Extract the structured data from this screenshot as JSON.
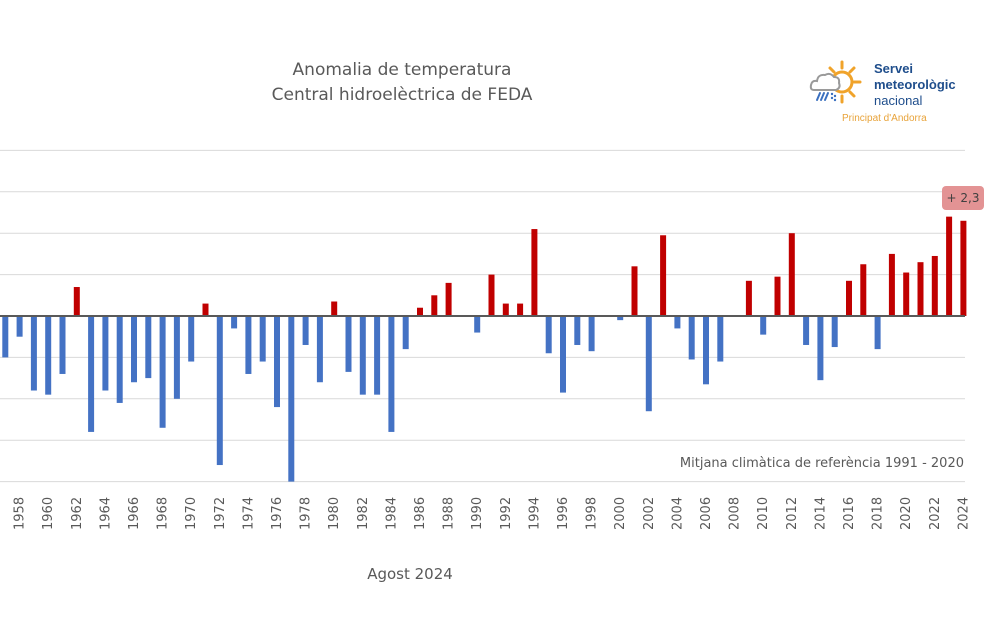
{
  "chart_data": {
    "type": "bar",
    "title": "Anomalia de temperatura",
    "subtitle": "Central hidroelèctrica de FEDA",
    "xlabel": "Agost 2024",
    "ylabel": "",
    "ylim": [
      -4,
      4
    ],
    "grid": true,
    "gridline_step": 1,
    "legend": "none",
    "positive_color": "#C00000",
    "negative_color": "#4472C4",
    "categories": [
      1957,
      1958,
      1959,
      1960,
      1961,
      1962,
      1963,
      1964,
      1965,
      1966,
      1967,
      1968,
      1969,
      1970,
      1971,
      1972,
      1973,
      1974,
      1975,
      1976,
      1977,
      1978,
      1979,
      1980,
      1981,
      1982,
      1983,
      1984,
      1985,
      1986,
      1987,
      1988,
      1989,
      1990,
      1991,
      1992,
      1993,
      1994,
      1995,
      1996,
      1997,
      1998,
      1999,
      2000,
      2001,
      2002,
      2003,
      2004,
      2005,
      2006,
      2007,
      2008,
      2009,
      2010,
      2011,
      2012,
      2013,
      2014,
      2015,
      2016,
      2017,
      2018,
      2019,
      2020,
      2021,
      2022,
      2023,
      2024
    ],
    "tick_labels": [
      "1958",
      "1960",
      "1962",
      "1964",
      "1966",
      "1968",
      "1970",
      "1972",
      "1974",
      "1976",
      "1978",
      "1980",
      "1982",
      "1984",
      "1986",
      "1988",
      "1990",
      "1992",
      "1994",
      "1996",
      "1998",
      "2000",
      "2002",
      "2004",
      "2006",
      "2008",
      "2010",
      "2012",
      "2014",
      "2016",
      "2018",
      "2020",
      "2022",
      "2024"
    ],
    "values": [
      -1.0,
      -0.5,
      -1.8,
      -1.9,
      -1.4,
      0.7,
      -2.8,
      -1.8,
      -2.1,
      -1.6,
      -1.5,
      -2.7,
      -2.0,
      -1.1,
      0.3,
      -3.6,
      -0.3,
      -1.4,
      -1.1,
      -2.2,
      -4.0,
      -0.7,
      -1.6,
      0.35,
      -1.35,
      -1.9,
      -1.9,
      -2.8,
      -0.8,
      0.2,
      0.5,
      0.8,
      0.0,
      -0.4,
      1.0,
      0.3,
      0.3,
      2.1,
      -0.9,
      -1.85,
      -0.7,
      -0.85,
      0.0,
      -0.1,
      1.2,
      -2.3,
      1.95,
      -0.3,
      -1.05,
      -1.65,
      -1.1,
      0.0,
      0.85,
      -0.45,
      0.95,
      2.0,
      -0.7,
      -1.55,
      -0.75,
      0.85,
      1.25,
      -0.8,
      1.5,
      1.05,
      1.3,
      1.45,
      2.4,
      2.3
    ],
    "annotations": [
      {
        "text": "+ 2,3",
        "year": 2024
      },
      {
        "text": "Mitjana climàtica de referència 1991 - 2020",
        "position": "bottom-right"
      }
    ]
  },
  "logo": {
    "line1": "Servei",
    "line2": "meteorològic",
    "line3": "nacional",
    "subtitle": "Principat d'Andorra",
    "icon": "weather-sun-cloud-rain-icon"
  }
}
